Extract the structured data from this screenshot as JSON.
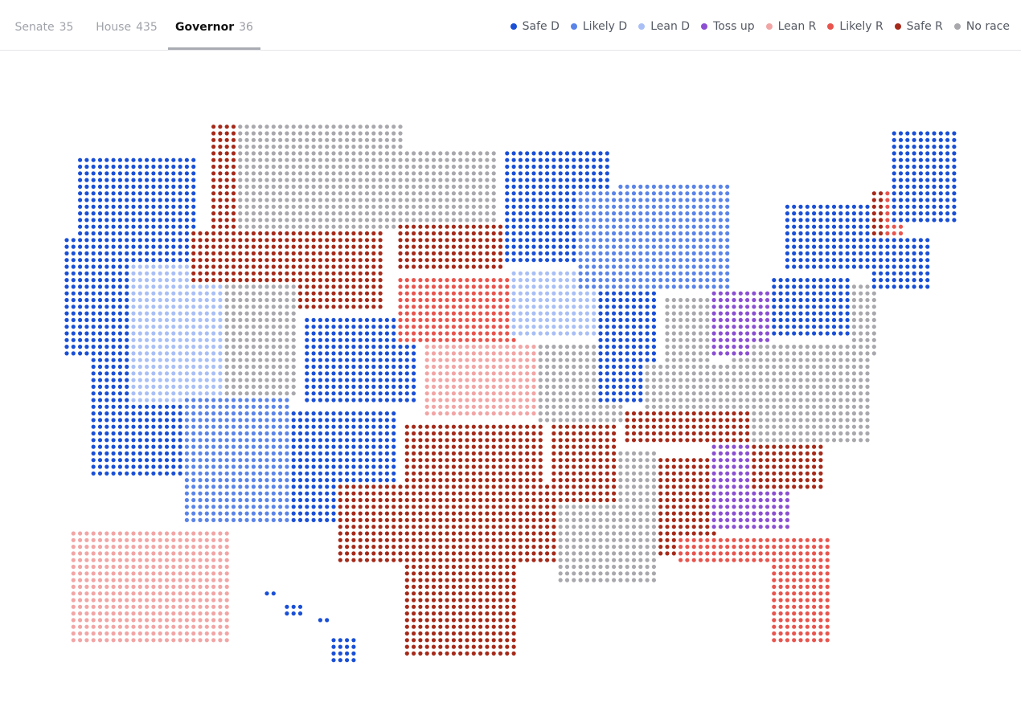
{
  "tabs": [
    {
      "label": "Senate",
      "count": 35
    },
    {
      "label": "House",
      "count": 435
    },
    {
      "label": "Governor",
      "count": 36
    }
  ],
  "legend": [
    {
      "label": "Safe D",
      "color": "#1a4fd6"
    },
    {
      "label": "Likely D",
      "color": "#5b84e8"
    },
    {
      "label": "Lean D",
      "color": "#a9bff5"
    },
    {
      "label": "Toss up",
      "color": "#8b4fd1"
    },
    {
      "label": "Lean R",
      "color": "#f2a5a5"
    },
    {
      "label": "Likely R",
      "color": "#e8554e"
    },
    {
      "label": "Safe R",
      "color": "#a52a1a"
    },
    {
      "label": "No race",
      "color": "#a8a8ad"
    }
  ]
}
